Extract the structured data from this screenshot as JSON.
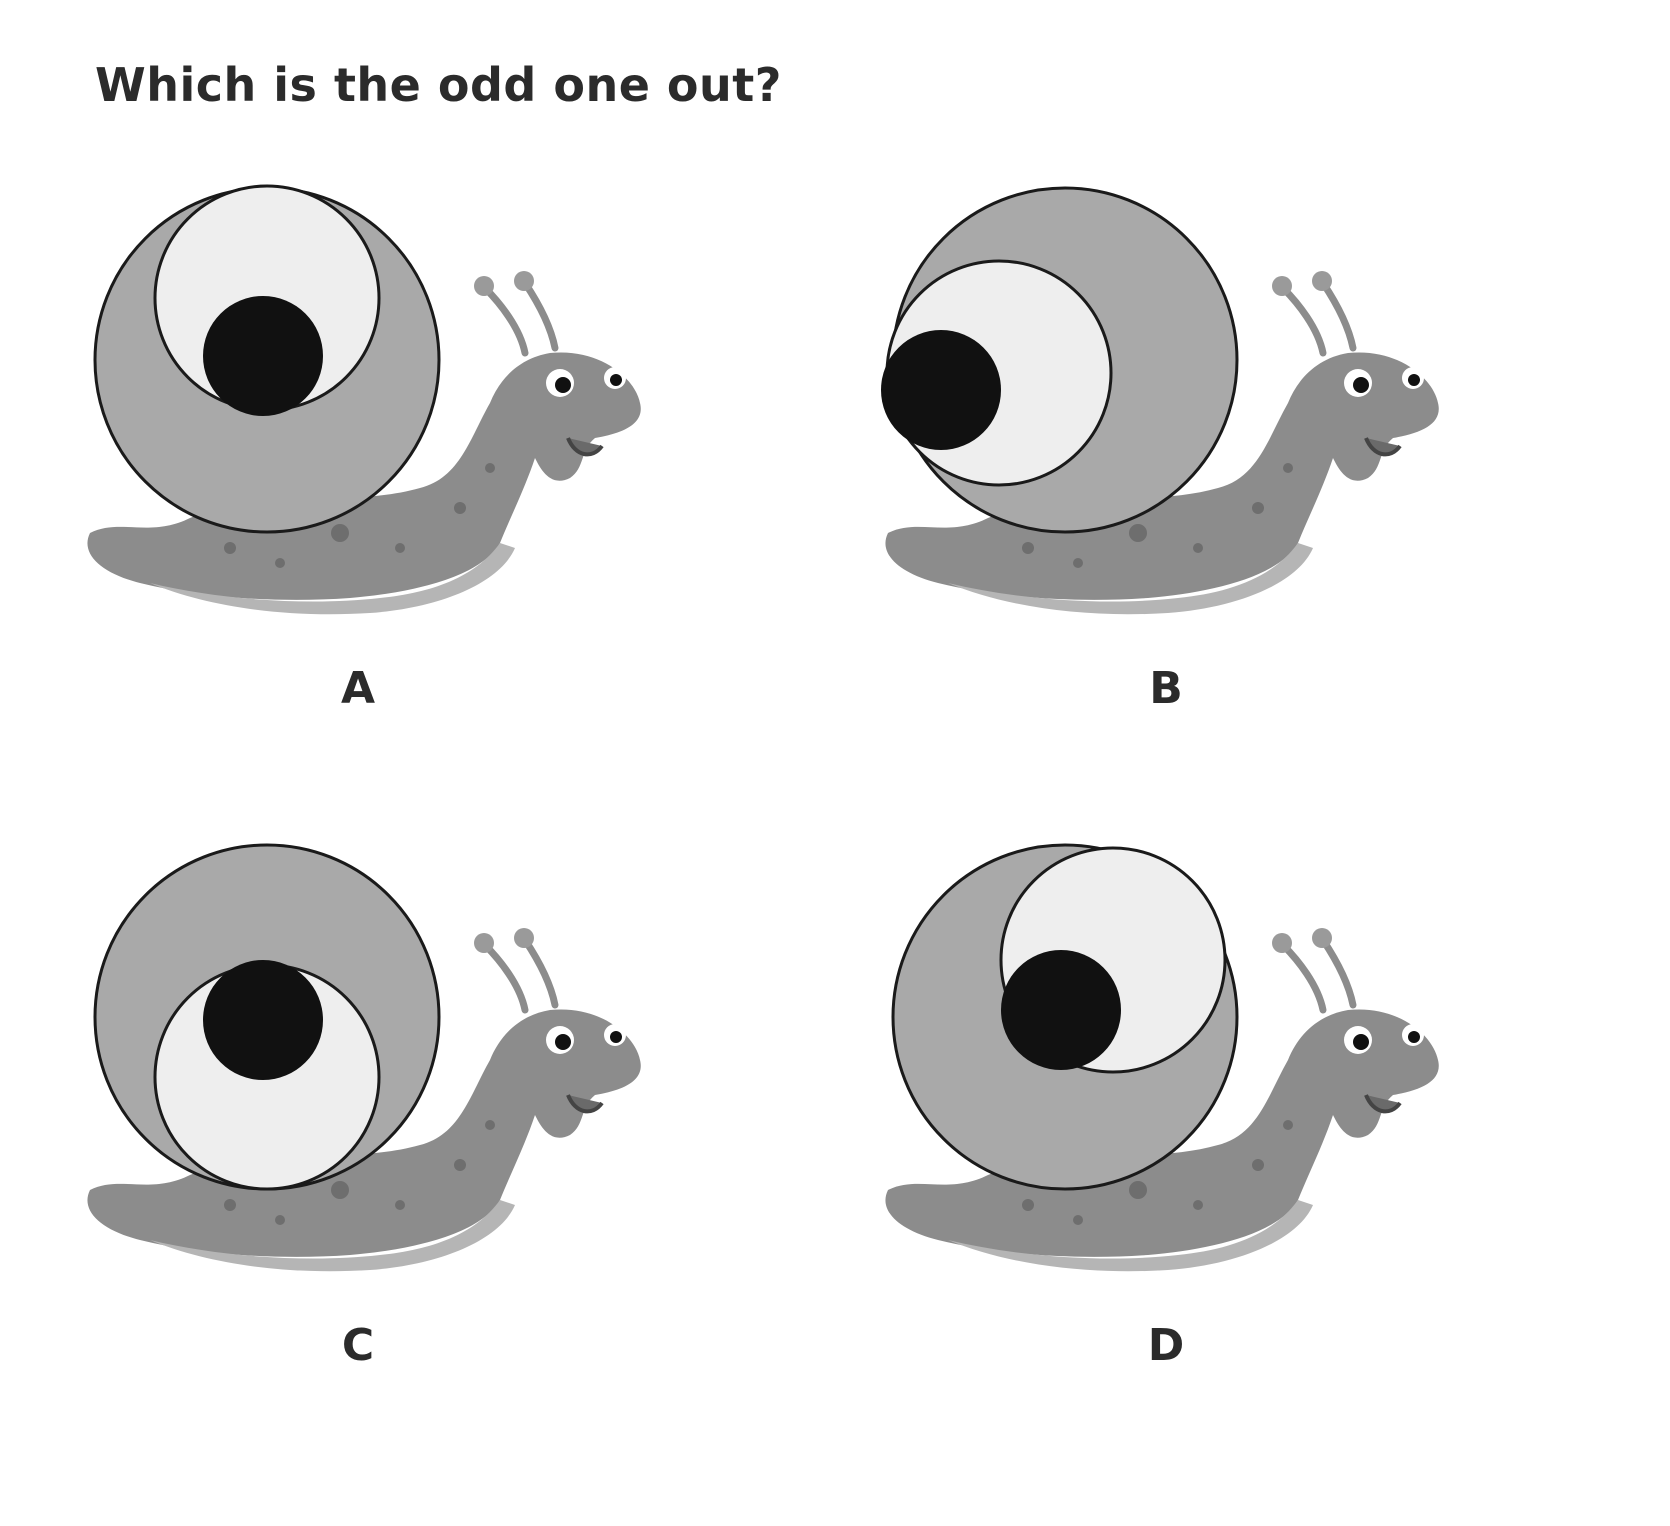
{
  "question": "Which is the odd one out?",
  "options": [
    {
      "label": "A",
      "inner_circle_position": "top"
    },
    {
      "label": "B",
      "inner_circle_position": "left"
    },
    {
      "label": "C",
      "inner_circle_position": "bottom"
    },
    {
      "label": "D",
      "inner_circle_position": "top-right"
    }
  ],
  "colors": {
    "shell_outer": "#a9a9a9",
    "shell_inner": "#eeeeee",
    "dot": "#111111",
    "body": "#8c8c8c",
    "body_underside": "#b5b5b5",
    "outline": "#1a1a1a"
  }
}
